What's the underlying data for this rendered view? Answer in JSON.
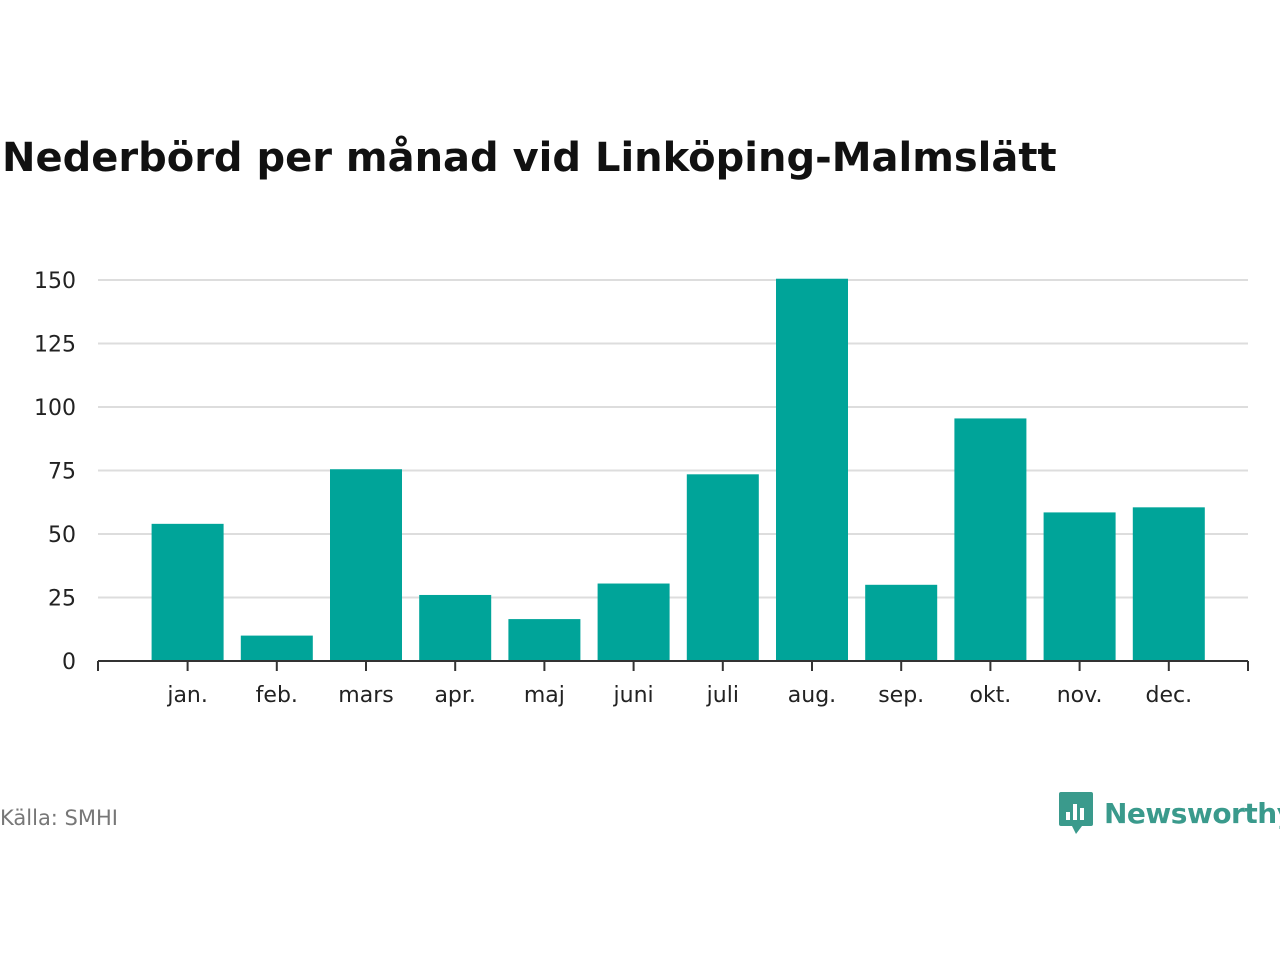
{
  "chart_data": {
    "type": "bar",
    "title": "Nederbörd per månad vid Linköping-Malmslätt",
    "xlabel": "",
    "ylabel": "",
    "categories": [
      "jan.",
      "feb.",
      "mars",
      "apr.",
      "maj",
      "juni",
      "juli",
      "aug.",
      "sep.",
      "okt.",
      "nov.",
      "dec."
    ],
    "values": [
      54,
      10,
      75.5,
      26,
      16.5,
      30.5,
      73.5,
      150.5,
      30,
      95.5,
      58.5,
      60.5
    ],
    "yticks": [
      "0",
      "25",
      "50",
      "75",
      "100",
      "125",
      "150"
    ],
    "ylim": [
      0,
      150
    ],
    "grid": true,
    "legend": "none",
    "bar_color": "#00a499",
    "grid_color": "#dddddd",
    "axis_color": "#333333"
  },
  "footer": {
    "source": "Källa: SMHI",
    "brand": "Newsworthy",
    "brand_color": "#3a9a8c",
    "brand_icon": "speech-bubble-bar-chart-icon"
  }
}
